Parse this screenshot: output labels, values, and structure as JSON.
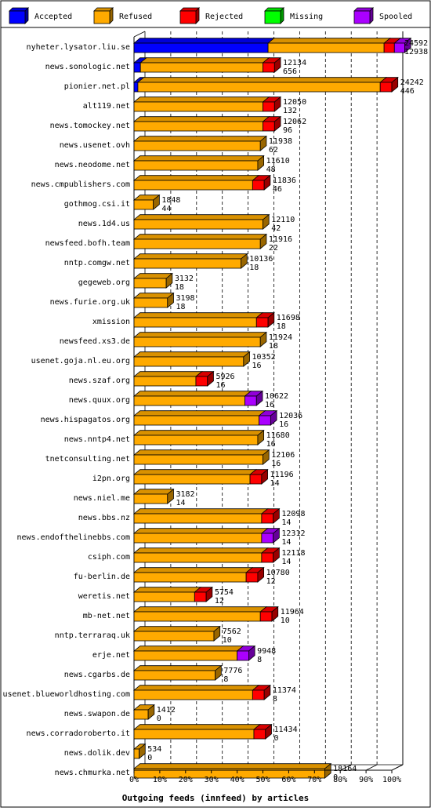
{
  "chart_data": {
    "type": "bar",
    "orientation": "horizontal",
    "stacked": true,
    "style": "3d",
    "title": "Outgoing feeds (innfeed) by articles",
    "xlim": [
      0,
      100
    ],
    "x_ticks": [
      "0%",
      "10%",
      "20%",
      "30%",
      "40%",
      "50%",
      "60%",
      "70%",
      "80%",
      "90%",
      "100%"
    ],
    "legend_position": "top",
    "grid": true,
    "series": [
      {
        "name": "Accepted",
        "color": "#0000ff"
      },
      {
        "name": "Refused",
        "color": "#ffaa00"
      },
      {
        "name": "Rejected",
        "color": "#ff0000"
      },
      {
        "name": "Missing",
        "color": "#00ff00"
      },
      {
        "name": "Spooled",
        "color": "#aa00ff"
      }
    ],
    "rows": [
      {
        "label": "nyheter.lysator.liu.se",
        "v1": "24592",
        "v2": "12938",
        "segments": [
          52,
          45,
          4,
          0,
          4
        ]
      },
      {
        "label": "news.sonologic.net",
        "v1": "12134",
        "v2": "656",
        "segments": [
          2.5,
          47.5,
          4.5,
          0,
          0
        ]
      },
      {
        "label": "pionier.net.pl",
        "v1": "24242",
        "v2": "446",
        "segments": [
          1.5,
          94,
          4.5,
          0,
          0
        ]
      },
      {
        "label": "alt119.net",
        "v1": "12050",
        "v2": "132",
        "segments": [
          0,
          50,
          4.5,
          0,
          0
        ]
      },
      {
        "label": "news.tomockey.net",
        "v1": "12062",
        "v2": "96",
        "segments": [
          0,
          50,
          4.5,
          0,
          0
        ]
      },
      {
        "label": "news.usenet.ovh",
        "v1": "11938",
        "v2": "62",
        "segments": [
          0,
          49,
          0,
          0,
          0
        ]
      },
      {
        "label": "news.neodome.net",
        "v1": "11610",
        "v2": "48",
        "segments": [
          0,
          48,
          0,
          0,
          0
        ]
      },
      {
        "label": "news.cmpublishers.com",
        "v1": "11836",
        "v2": "46",
        "segments": [
          0,
          46,
          4.5,
          0,
          0
        ]
      },
      {
        "label": "gothmog.csi.it",
        "v1": "1848",
        "v2": "44",
        "segments": [
          0,
          7.5,
          0,
          0,
          0
        ]
      },
      {
        "label": "news.1d4.us",
        "v1": "12110",
        "v2": "42",
        "segments": [
          0,
          50,
          0,
          0,
          0
        ]
      },
      {
        "label": "newsfeed.bofh.team",
        "v1": "11916",
        "v2": "22",
        "segments": [
          0,
          49,
          0,
          0,
          0
        ]
      },
      {
        "label": "nntp.comgw.net",
        "v1": "10136",
        "v2": "18",
        "segments": [
          0,
          41.5,
          0,
          0,
          0
        ]
      },
      {
        "label": "gegeweb.org",
        "v1": "3132",
        "v2": "18",
        "segments": [
          0,
          12.5,
          0,
          0,
          0
        ]
      },
      {
        "label": "news.furie.org.uk",
        "v1": "3198",
        "v2": "18",
        "segments": [
          0,
          13,
          0,
          0,
          0
        ]
      },
      {
        "label": "xmission",
        "v1": "11698",
        "v2": "18",
        "segments": [
          0,
          47.5,
          4.5,
          0,
          0
        ]
      },
      {
        "label": "newsfeed.xs3.de",
        "v1": "11924",
        "v2": "18",
        "segments": [
          0,
          49,
          0,
          0,
          0
        ]
      },
      {
        "label": "usenet.goja.nl.eu.org",
        "v1": "10352",
        "v2": "16",
        "segments": [
          0,
          42.5,
          0,
          0,
          0
        ]
      },
      {
        "label": "news.szaf.org",
        "v1": "5926",
        "v2": "16",
        "segments": [
          0,
          24,
          4.5,
          0,
          0
        ]
      },
      {
        "label": "news.quux.org",
        "v1": "10622",
        "v2": "16",
        "segments": [
          0,
          43,
          0,
          0,
          4.5
        ]
      },
      {
        "label": "news.hispagatos.org",
        "v1": "12036",
        "v2": "16",
        "segments": [
          0,
          48.5,
          0,
          0,
          4.5
        ]
      },
      {
        "label": "news.nntp4.net",
        "v1": "11680",
        "v2": "16",
        "segments": [
          0,
          48,
          0,
          0,
          0
        ]
      },
      {
        "label": "tnetconsulting.net",
        "v1": "12106",
        "v2": "16",
        "segments": [
          0,
          50,
          0,
          0,
          0
        ]
      },
      {
        "label": "i2pn.org",
        "v1": "11196",
        "v2": "14",
        "segments": [
          0,
          45,
          4.5,
          0,
          0
        ]
      },
      {
        "label": "news.niel.me",
        "v1": "3182",
        "v2": "14",
        "segments": [
          0,
          13,
          0,
          0,
          0
        ]
      },
      {
        "label": "news.bbs.nz",
        "v1": "12098",
        "v2": "14",
        "segments": [
          0,
          49.5,
          4.5,
          0,
          0
        ]
      },
      {
        "label": "news.endofthelinebbs.com",
        "v1": "12312",
        "v2": "14",
        "segments": [
          0,
          49.5,
          0,
          0,
          4.5
        ]
      },
      {
        "label": "csiph.com",
        "v1": "12118",
        "v2": "14",
        "segments": [
          0,
          49.5,
          4.5,
          0,
          0
        ]
      },
      {
        "label": "fu-berlin.de",
        "v1": "10780",
        "v2": "12",
        "segments": [
          0,
          43.5,
          4.5,
          0,
          0
        ]
      },
      {
        "label": "weretis.net",
        "v1": "5754",
        "v2": "12",
        "segments": [
          0,
          23.5,
          4.5,
          0,
          0
        ]
      },
      {
        "label": "mb-net.net",
        "v1": "11964",
        "v2": "10",
        "segments": [
          0,
          49,
          4.5,
          0,
          0
        ]
      },
      {
        "label": "nntp.terraraq.uk",
        "v1": "7562",
        "v2": "10",
        "segments": [
          0,
          31,
          0,
          0,
          0
        ]
      },
      {
        "label": "erje.net",
        "v1": "9948",
        "v2": "8",
        "segments": [
          0,
          40,
          0,
          0,
          4.5
        ]
      },
      {
        "label": "news.cgarbs.de",
        "v1": "7776",
        "v2": "8",
        "segments": [
          0,
          31.5,
          0,
          0,
          0
        ]
      },
      {
        "label": "usenet.blueworldhosting.com",
        "v1": "11374",
        "v2": "8",
        "segments": [
          0,
          46,
          4.5,
          0,
          0
        ]
      },
      {
        "label": "news.swapon.de",
        "v1": "1412",
        "v2": "0",
        "segments": [
          0,
          5.5,
          0,
          0,
          0
        ]
      },
      {
        "label": "news.corradoroberto.it",
        "v1": "11434",
        "v2": "0",
        "segments": [
          0,
          46.5,
          4.5,
          0,
          0
        ]
      },
      {
        "label": "news.dolik.dev",
        "v1": "534",
        "v2": "0",
        "segments": [
          0,
          2,
          0,
          0,
          0
        ]
      },
      {
        "label": "news.chmurka.net",
        "v1": "18164",
        "v2": "0",
        "segments": [
          0,
          74,
          0,
          0,
          0
        ]
      }
    ]
  }
}
